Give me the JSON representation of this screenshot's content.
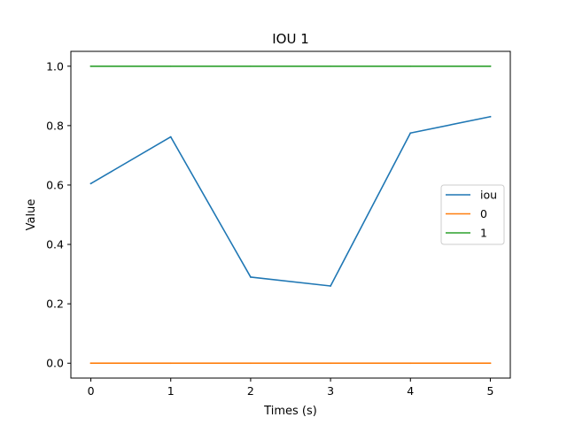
{
  "chart_data": {
    "type": "line",
    "title": "IOU 1",
    "xlabel": "Times (s)",
    "ylabel": "Value",
    "x": [
      0,
      1,
      2,
      3,
      4,
      5
    ],
    "xlim": [
      -0.25,
      5.25
    ],
    "ylim": [
      -0.05,
      1.05
    ],
    "xticks": [
      "0",
      "1",
      "2",
      "3",
      "4",
      "5"
    ],
    "yticks": [
      "0.0",
      "0.2",
      "0.4",
      "0.6",
      "0.8",
      "1.0"
    ],
    "grid": false,
    "legend_position": "center-right",
    "series": [
      {
        "name": "iou",
        "color": "#1f77b4",
        "values": [
          0.605,
          0.762,
          0.29,
          0.26,
          0.775,
          0.83
        ]
      },
      {
        "name": "0",
        "color": "#ff7f0e",
        "values": [
          0.0,
          0.0,
          0.0,
          0.0,
          0.0,
          0.0
        ]
      },
      {
        "name": "1",
        "color": "#2ca02c",
        "values": [
          1.0,
          1.0,
          1.0,
          1.0,
          1.0,
          1.0
        ]
      }
    ]
  }
}
